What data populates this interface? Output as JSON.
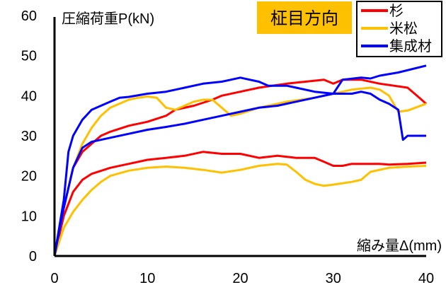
{
  "chart_data": {
    "type": "line",
    "title": "柾目方向",
    "xlabel": "縮み量Δ(mm)",
    "ylabel": "圧縮荷重P(kN)",
    "xlim": [
      0,
      40
    ],
    "ylim": [
      0,
      60
    ],
    "xticks": [
      "0",
      "10",
      "20",
      "30",
      "40"
    ],
    "yticks": [
      "0",
      "10",
      "20",
      "30",
      "40",
      "50",
      "60"
    ],
    "xtick_values": [
      0,
      10,
      20,
      30,
      40
    ],
    "ytick_values": [
      0,
      10,
      20,
      30,
      40,
      50,
      60
    ],
    "grid": false,
    "legend_position": "top-right",
    "legend": [
      {
        "name": "杉",
        "color": "#ff0000"
      },
      {
        "name": "米松",
        "color": "#ffc000"
      },
      {
        "name": "集成材",
        "color": "#0000ff"
      }
    ],
    "title_bg_color": "#ffc000",
    "series": [
      {
        "name": "杉",
        "specimen": 1,
        "color": "#ff0000",
        "points": [
          [
            0,
            0
          ],
          [
            1,
            12
          ],
          [
            2,
            22
          ],
          [
            3,
            26
          ],
          [
            4,
            28
          ],
          [
            5,
            30
          ],
          [
            6,
            31
          ],
          [
            8,
            32.5
          ],
          [
            10,
            33.5
          ],
          [
            12,
            35
          ],
          [
            13,
            36.5
          ],
          [
            15,
            37.5
          ],
          [
            17,
            39
          ],
          [
            18,
            40
          ],
          [
            20,
            41
          ],
          [
            22,
            42
          ],
          [
            25,
            43
          ],
          [
            27,
            43.5
          ],
          [
            29,
            44
          ],
          [
            30,
            43
          ],
          [
            31,
            44
          ],
          [
            33,
            44
          ],
          [
            35,
            43
          ],
          [
            38,
            42
          ],
          [
            39,
            40
          ],
          [
            40,
            38
          ]
        ]
      },
      {
        "name": "杉",
        "specimen": 2,
        "color": "#ff0000",
        "points": [
          [
            0,
            0
          ],
          [
            1,
            10
          ],
          [
            2,
            16
          ],
          [
            3,
            19
          ],
          [
            4,
            20.5
          ],
          [
            6,
            22
          ],
          [
            8,
            23
          ],
          [
            10,
            24
          ],
          [
            12,
            24.5
          ],
          [
            14,
            25
          ],
          [
            16,
            26
          ],
          [
            18,
            25.5
          ],
          [
            20,
            25.5
          ],
          [
            22,
            24.5
          ],
          [
            24,
            25
          ],
          [
            26,
            24.5
          ],
          [
            28,
            24.5
          ],
          [
            29,
            23.5
          ],
          [
            30,
            22.5
          ],
          [
            31,
            22.5
          ],
          [
            32,
            23
          ],
          [
            35,
            23
          ],
          [
            36,
            22.8
          ],
          [
            38,
            23
          ],
          [
            40,
            23.3
          ]
        ]
      },
      {
        "name": "米松",
        "specimen": 1,
        "color": "#ffc000",
        "points": [
          [
            0,
            0
          ],
          [
            1,
            12
          ],
          [
            2,
            22
          ],
          [
            3,
            28
          ],
          [
            4,
            32
          ],
          [
            5,
            35
          ],
          [
            6,
            37
          ],
          [
            8,
            39
          ],
          [
            9,
            39.5
          ],
          [
            10,
            39.8
          ],
          [
            11,
            39.5
          ],
          [
            12,
            37
          ],
          [
            13,
            36.5
          ],
          [
            15,
            38.5
          ],
          [
            16,
            39
          ],
          [
            17,
            39
          ],
          [
            18,
            37
          ],
          [
            19,
            35
          ],
          [
            20,
            35.5
          ],
          [
            22,
            37
          ],
          [
            25,
            38.5
          ],
          [
            28,
            39.5
          ],
          [
            30,
            40.5
          ],
          [
            31,
            41
          ],
          [
            32,
            41.5
          ],
          [
            34,
            42
          ],
          [
            35,
            41.5
          ],
          [
            36,
            40
          ],
          [
            37,
            36
          ],
          [
            38,
            36.3
          ],
          [
            40,
            38
          ]
        ]
      },
      {
        "name": "米松",
        "specimen": 2,
        "color": "#ffc000",
        "points": [
          [
            0,
            0
          ],
          [
            1,
            7
          ],
          [
            2,
            11
          ],
          [
            3,
            14
          ],
          [
            4,
            16.5
          ],
          [
            5,
            18.5
          ],
          [
            6,
            20
          ],
          [
            8,
            21.3
          ],
          [
            10,
            22
          ],
          [
            12,
            22.3
          ],
          [
            14,
            22
          ],
          [
            16,
            21.5
          ],
          [
            18,
            20.8
          ],
          [
            20,
            21.5
          ],
          [
            22,
            22.5
          ],
          [
            24,
            23
          ],
          [
            25,
            22.8
          ],
          [
            26,
            21
          ],
          [
            27,
            19
          ],
          [
            28,
            18
          ],
          [
            29,
            17.5
          ],
          [
            30,
            17.8
          ],
          [
            32,
            18.5
          ],
          [
            33,
            19
          ],
          [
            34,
            21
          ],
          [
            36,
            22
          ],
          [
            38,
            22.3
          ],
          [
            40,
            22.5
          ]
        ]
      },
      {
        "name": "集成材",
        "specimen": 1,
        "color": "#0000ff",
        "points": [
          [
            0,
            0
          ],
          [
            1,
            14
          ],
          [
            1.5,
            26
          ],
          [
            2,
            30
          ],
          [
            3,
            34
          ],
          [
            4,
            36.5
          ],
          [
            5,
            37.5
          ],
          [
            6,
            38.5
          ],
          [
            7,
            39.5
          ],
          [
            8,
            39.7
          ],
          [
            10,
            40.5
          ],
          [
            12,
            41
          ],
          [
            14,
            42
          ],
          [
            16,
            43
          ],
          [
            18,
            43.5
          ],
          [
            19,
            44
          ],
          [
            20,
            44.5
          ],
          [
            21,
            44
          ],
          [
            22,
            43.5
          ],
          [
            23,
            42.5
          ],
          [
            25,
            42.5
          ],
          [
            26,
            42
          ],
          [
            28,
            41
          ],
          [
            30,
            40.5
          ],
          [
            32,
            40.5
          ],
          [
            33,
            41
          ],
          [
            34,
            40.5
          ],
          [
            35,
            39
          ],
          [
            36,
            38
          ],
          [
            37,
            36.5
          ],
          [
            37.5,
            29
          ],
          [
            38,
            30
          ],
          [
            40,
            30
          ]
        ]
      },
      {
        "name": "集成材",
        "specimen": 2,
        "color": "#0000ff",
        "points": [
          [
            0,
            0
          ],
          [
            1,
            12
          ],
          [
            2,
            22
          ],
          [
            3,
            27
          ],
          [
            4,
            28.5
          ],
          [
            5,
            29
          ],
          [
            6,
            29.5
          ],
          [
            8,
            30.5
          ],
          [
            10,
            31.5
          ],
          [
            12,
            32.2
          ],
          [
            14,
            33
          ],
          [
            16,
            34
          ],
          [
            18,
            35
          ],
          [
            20,
            36
          ],
          [
            22,
            37
          ],
          [
            24,
            37.5
          ],
          [
            26,
            38.5
          ],
          [
            28,
            39.5
          ],
          [
            30,
            40.5
          ],
          [
            31,
            44
          ],
          [
            33,
            44.5
          ],
          [
            34,
            44.3
          ],
          [
            35,
            45
          ],
          [
            37,
            45.8
          ],
          [
            40,
            47.5
          ]
        ]
      }
    ]
  }
}
